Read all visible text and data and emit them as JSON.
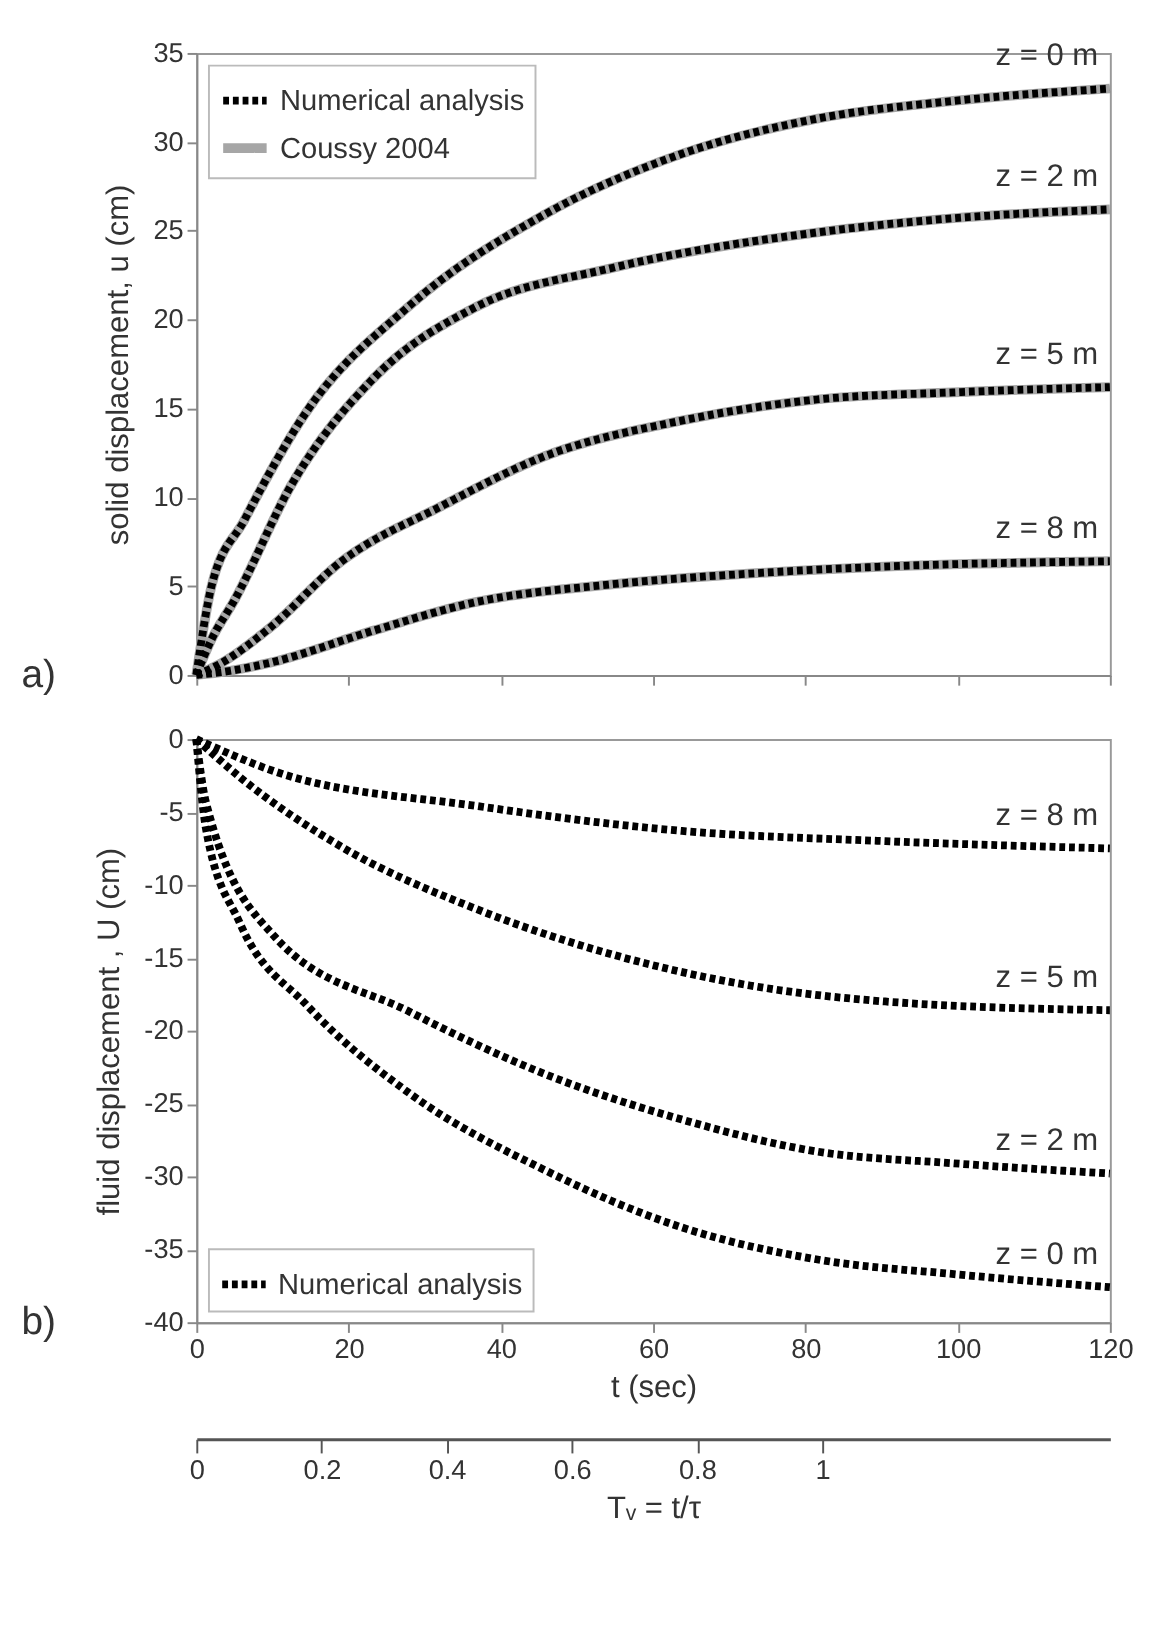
{
  "chart_data": [
    {
      "type": "line",
      "ylabel": "solid  displacement, u  (cm)",
      "xlim": [
        0,
        120
      ],
      "xticks": [
        0,
        20,
        40,
        60,
        80,
        100,
        120
      ],
      "ylim": [
        0,
        35
      ],
      "yticks": [
        0,
        5,
        10,
        15,
        20,
        25,
        30,
        35
      ],
      "tick_labels": "y",
      "legend": "top left",
      "grid": false,
      "annotations": [
        "z = 0 m",
        "z = 2 m",
        "z = 5 m",
        "z = 8 m",
        "a)"
      ],
      "series": [
        {
          "name": "Coussy 2004",
          "color": "#a6a6a6",
          "line_style": "solid",
          "x": [
            0,
            2,
            6.3,
            14.3,
            27.8,
            45.7,
            63.6,
            81.5,
            99.4,
            120
          ],
          "values": [
            0,
            5.0,
            8.7,
            14.7,
            20.7,
            25.9,
            29.3,
            31.3,
            32.3,
            33.0
          ]
        },
        {
          "color": "#a6a6a6",
          "line_style": "solid",
          "x": [
            0,
            2,
            5,
            12.5,
            23.3,
            36.7,
            54.6,
            81.5,
            99.4,
            120
          ],
          "values": [
            0,
            2.0,
            4.2,
            10.7,
            16.7,
            20.7,
            22.9,
            24.9,
            25.7,
            26.2
          ]
        },
        {
          "color": "#a6a6a6",
          "line_style": "solid",
          "x": [
            0,
            3,
            9.8,
            18.8,
            32.2,
            45.7,
            63.6,
            81.5,
            99.4,
            120
          ],
          "values": [
            0,
            0.6,
            2.7,
            6.3,
            9.5,
            12.3,
            14.3,
            15.5,
            15.9,
            16.2
          ]
        },
        {
          "color": "#a6a6a6",
          "line_style": "solid",
          "x": [
            0,
            4,
            9.8,
            23.3,
            36.7,
            54.6,
            72.5,
            90.4,
            120
          ],
          "values": [
            0,
            0.2,
            0.7,
            2.5,
            4.1,
            5.1,
            5.7,
            6.1,
            6.4
          ]
        },
        {
          "name": "Numerical analysis",
          "color": "#000000",
          "line_style": "dotted",
          "x": [
            0,
            2,
            6.3,
            14.3,
            27.8,
            45.7,
            63.6,
            81.5,
            99.4,
            120
          ],
          "values": [
            0,
            5.0,
            8.7,
            14.7,
            20.7,
            25.9,
            29.3,
            31.3,
            32.3,
            33.0
          ]
        },
        {
          "color": "#000000",
          "line_style": "dotted",
          "x": [
            0,
            2,
            5,
            12.5,
            23.3,
            36.7,
            54.6,
            81.5,
            99.4,
            120
          ],
          "values": [
            0,
            2.0,
            4.2,
            10.7,
            16.7,
            20.7,
            22.9,
            24.9,
            25.7,
            26.2
          ]
        },
        {
          "color": "#000000",
          "line_style": "dotted",
          "x": [
            0,
            3,
            9.8,
            18.8,
            32.2,
            45.7,
            63.6,
            81.5,
            99.4,
            120
          ],
          "values": [
            0,
            0.6,
            2.7,
            6.3,
            9.5,
            12.3,
            14.3,
            15.5,
            15.9,
            16.2
          ]
        },
        {
          "color": "#000000",
          "line_style": "dotted",
          "x": [
            0,
            4,
            9.8,
            23.3,
            36.7,
            54.6,
            72.5,
            90.4,
            120
          ],
          "values": [
            0,
            0.2,
            0.7,
            2.5,
            4.1,
            5.1,
            5.7,
            6.1,
            6.4
          ]
        }
      ]
    },
    {
      "type": "line",
      "xlabel": "t  (sec)",
      "ylabel": "fluid  displacement , U  (cm)",
      "xlim": [
        0,
        120
      ],
      "xticks": [
        0,
        20,
        40,
        60,
        80,
        100,
        120
      ],
      "ylim": [
        -40,
        0
      ],
      "yticks": [
        0,
        -5,
        -10,
        -15,
        -20,
        -25,
        -30,
        -35,
        -40
      ],
      "legend": "bottom left",
      "grid": false,
      "x2lim": [
        0,
        1.46
      ],
      "x2ticks": [
        0,
        0.2,
        0.4,
        0.6,
        0.8,
        1
      ],
      "x2label": "Tᵥ = t/τ",
      "annotations": [
        "z = 8 m",
        "z = 5 m",
        "z = 2 m",
        "z = 0 m",
        "b)"
      ],
      "series": [
        {
          "name": "Numerical analysis",
          "color": "#000000",
          "line_style": "dotted",
          "x": [
            0,
            10.2,
            37,
            63.8,
            90.5,
            120
          ],
          "values": [
            0,
            -2.2,
            -4.6,
            -6.3,
            -7.0,
            -7.5
          ]
        },
        {
          "color": "#000000",
          "line_style": "dotted",
          "x": [
            0,
            5.7,
            19.1,
            37,
            54.8,
            72.7,
            90.5,
            120
          ],
          "values": [
            0,
            -2.6,
            -7.4,
            -11.7,
            -14.8,
            -16.9,
            -18.0,
            -18.6
          ]
        },
        {
          "color": "#000000",
          "line_style": "dotted",
          "x": [
            0,
            1.25,
            10.2,
            28,
            45.9,
            63.8,
            81.6,
            99.5,
            120
          ],
          "values": [
            0,
            -4.3,
            -13.5,
            -18.7,
            -23.0,
            -26.1,
            -28.3,
            -29.1,
            -29.8
          ]
        },
        {
          "color": "#000000",
          "line_style": "dotted",
          "x": [
            0,
            1.25,
            5.7,
            14.6,
            28,
            45.9,
            63.8,
            81.6,
            99.5,
            120
          ],
          "values": [
            0,
            -6.1,
            -12.6,
            -18.3,
            -24.3,
            -29.6,
            -33.5,
            -35.7,
            -36.7,
            -37.6
          ]
        }
      ]
    }
  ]
}
